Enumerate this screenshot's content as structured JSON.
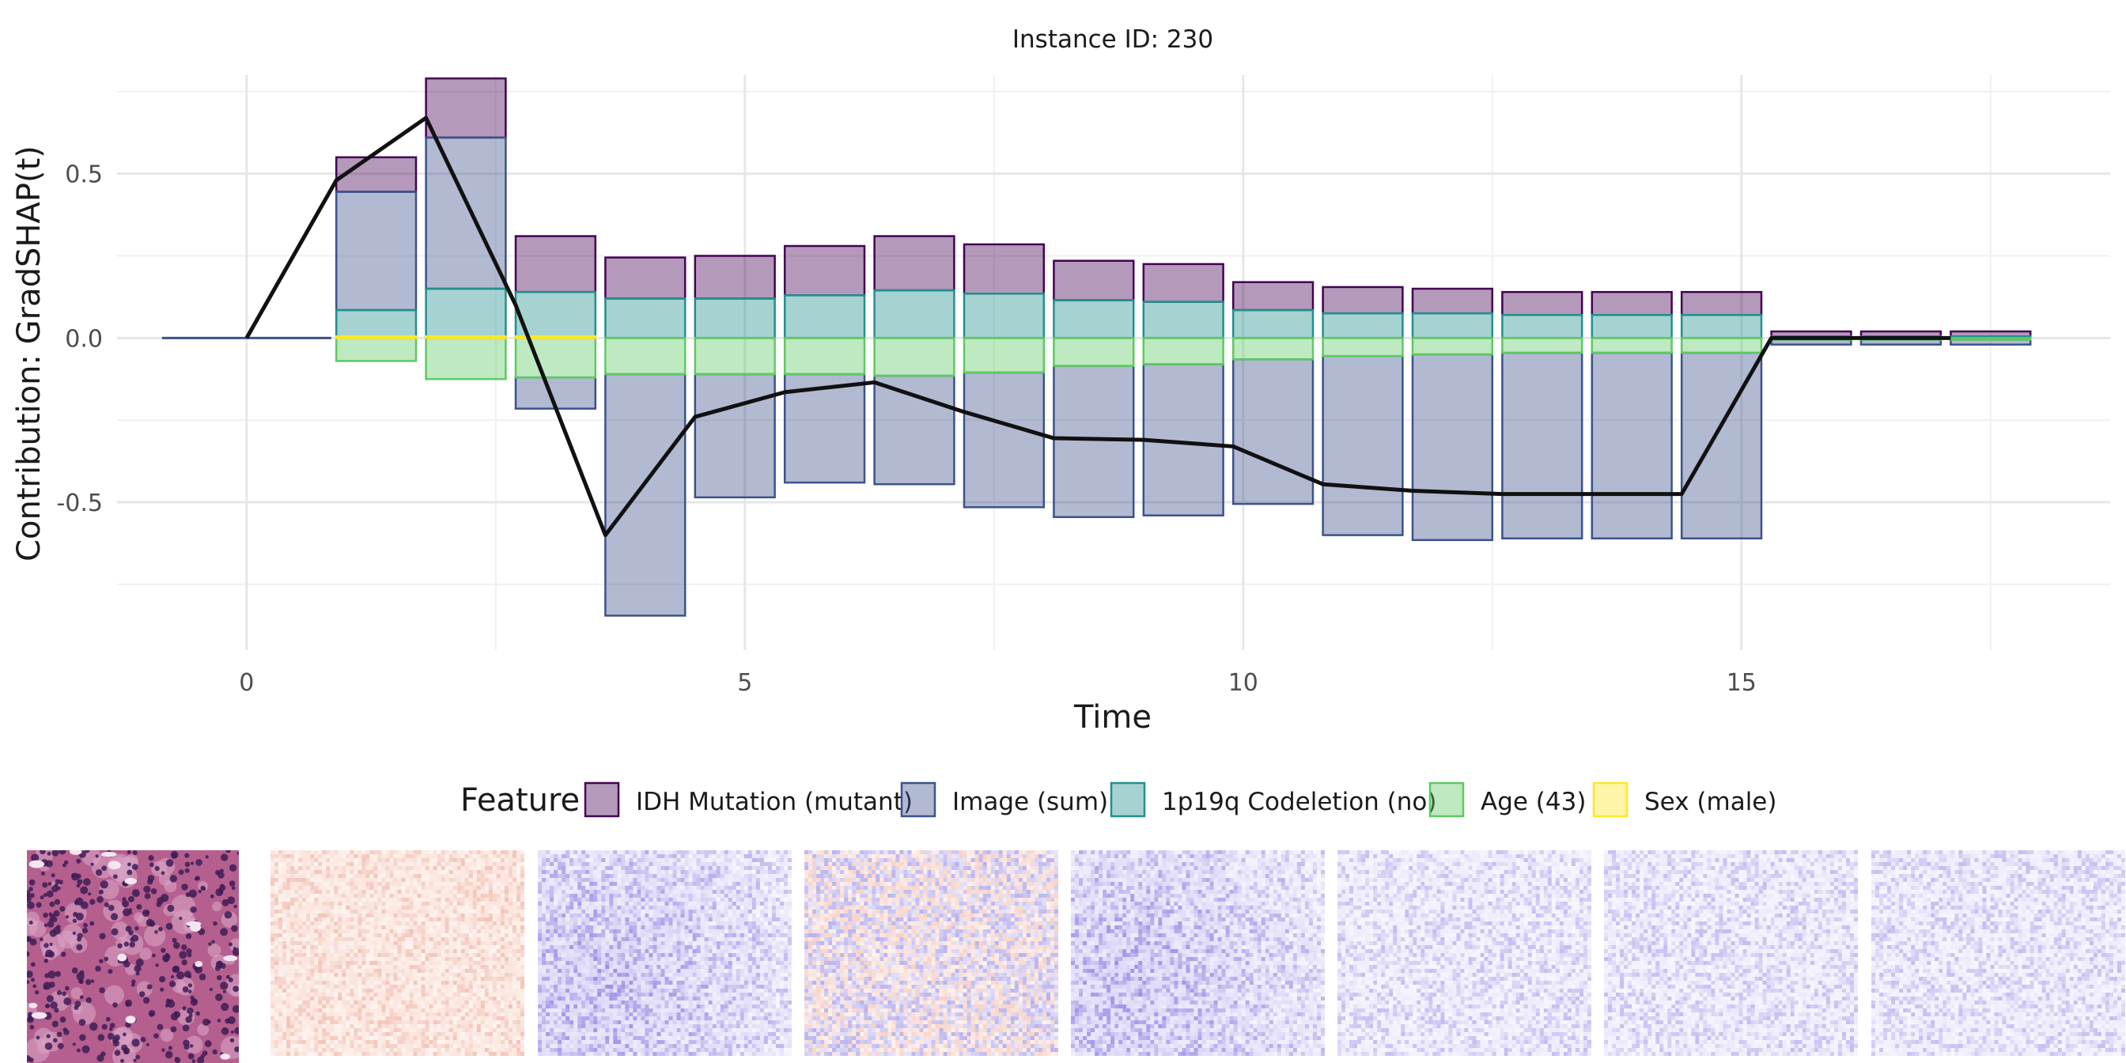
{
  "chart_data": {
    "type": "bar",
    "subtype": "stacked bar with line overlay",
    "title": "Instance ID: 230",
    "xlabel": "Time",
    "ylabel": "Contribution: GradSHAP(t)",
    "xlim": [
      -1.3,
      18.7
    ],
    "ylim": [
      -0.95,
      0.8
    ],
    "x_ticks": [
      0,
      5,
      10,
      15
    ],
    "y_ticks": [
      -0.5,
      0.0,
      0.5
    ],
    "x_tick_labels": [
      "0",
      "5",
      "10",
      "15"
    ],
    "y_tick_labels": [
      "-0.5",
      "0.0",
      "0.5"
    ],
    "grid": true,
    "legend": {
      "title": "Feature",
      "position": "bottom",
      "entries": [
        "IDH Mutation (mutant)",
        "Image (sum)",
        "1p19q Codeletion (no)",
        "Age (43)",
        "Sex (male)"
      ]
    },
    "x": [
      0.0,
      1.3,
      2.2,
      3.1,
      4.0,
      4.9,
      5.8,
      6.7,
      7.6,
      8.5,
      9.4,
      10.3,
      11.2,
      12.1,
      13.0,
      13.9,
      14.8,
      15.7,
      16.6,
      17.5
    ],
    "series": [
      {
        "name": "IDH Mutation (mutant)",
        "color": "#440154",
        "values": [
          0.0,
          0.105,
          0.18,
          0.17,
          0.125,
          0.13,
          0.145,
          0.165,
          0.15,
          0.12,
          0.115,
          0.085,
          0.075,
          0.075,
          0.07,
          0.07,
          0.07,
          0.01,
          0.01,
          0.01
        ]
      },
      {
        "name": "Image (sum)",
        "pos": [
          0.0,
          0.365,
          0.465,
          0.0,
          0.0,
          0.0,
          0.0,
          0.0,
          0.0,
          0.0,
          0.0,
          0.0,
          0.0,
          0.0,
          0.0,
          0.0,
          0.0,
          0.0,
          0.0,
          0.0
        ],
        "color": "#3b528b",
        "values": [
          0.0,
          0.365,
          0.465,
          -0.095,
          -0.74,
          -0.375,
          -0.335,
          -0.33,
          -0.41,
          -0.46,
          -0.465,
          -0.44,
          -0.55,
          -0.565,
          -0.565,
          -0.565,
          -0.565,
          -0.01,
          -0.01,
          -0.01
        ],
        "neg_start": [
          0.0,
          0.0,
          0.0,
          -0.125,
          -0.11,
          -0.11,
          -0.11,
          -0.115,
          -0.105,
          -0.085,
          -0.08,
          -0.065,
          -0.055,
          -0.05,
          -0.045,
          -0.045,
          -0.045,
          -0.005,
          -0.005,
          -0.005
        ]
      },
      {
        "name": "1p19q Codeletion (no)",
        "color": "#21908c",
        "values": [
          0.0,
          0.08,
          0.15,
          0.14,
          0.12,
          0.12,
          0.13,
          0.145,
          0.135,
          0.115,
          0.11,
          0.085,
          0.075,
          0.075,
          0.07,
          0.07,
          0.07,
          0.005,
          0.005,
          0.005
        ]
      },
      {
        "name": "Age (43)",
        "color": "#5ec962",
        "values": [
          0.0,
          -0.07,
          -0.125,
          -0.125,
          -0.11,
          -0.11,
          -0.11,
          -0.115,
          -0.105,
          -0.085,
          -0.08,
          -0.065,
          -0.055,
          -0.05,
          -0.045,
          -0.045,
          -0.045,
          -0.005,
          -0.005,
          -0.005
        ]
      },
      {
        "name": "Sex (male)",
        "color": "#fde725",
        "values": [
          0.0,
          0.005,
          0.005,
          0.005,
          0.0,
          0.0,
          0.0,
          0.0,
          0.0,
          0.0,
          0.0,
          0.0,
          0.0,
          0.0,
          0.0,
          0.0,
          0.0,
          0.0,
          0.0,
          0.0
        ]
      }
    ],
    "stack_segments": [
      {
        "x": 0.0,
        "segs": []
      },
      {
        "x": 1.3,
        "segs": [
          [
            0.445,
            0.55,
            "IDH Mutation (mutant)"
          ],
          [
            0.085,
            0.445,
            "Image (sum)"
          ],
          [
            0.005,
            0.085,
            "1p19q Codeletion (no)"
          ],
          [
            -0.07,
            0.0,
            "Age (43)"
          ],
          [
            0.0,
            0.005,
            "Sex (male)"
          ]
        ]
      },
      {
        "x": 2.2,
        "segs": [
          [
            0.61,
            0.79,
            "IDH Mutation (mutant)"
          ],
          [
            0.15,
            0.61,
            "Image (sum)"
          ],
          [
            0.005,
            0.15,
            "1p19q Codeletion (no)"
          ],
          [
            -0.125,
            0.0,
            "Age (43)"
          ],
          [
            0.0,
            0.005,
            "Sex (male)"
          ]
        ]
      },
      {
        "x": 3.1,
        "segs": [
          [
            0.14,
            0.31,
            "IDH Mutation (mutant)"
          ],
          [
            -0.215,
            -0.12,
            "Image (sum)"
          ],
          [
            0.005,
            0.14,
            "1p19q Codeletion (no)"
          ],
          [
            -0.12,
            0.0,
            "Age (43)"
          ],
          [
            0.0,
            0.005,
            "Sex (male)"
          ]
        ]
      },
      {
        "x": 4.0,
        "segs": [
          [
            0.12,
            0.245,
            "IDH Mutation (mutant)"
          ],
          [
            -0.845,
            -0.11,
            "Image (sum)"
          ],
          [
            0.0,
            0.12,
            "1p19q Codeletion (no)"
          ],
          [
            -0.11,
            0.0,
            "Age (43)"
          ]
        ]
      },
      {
        "x": 4.9,
        "segs": [
          [
            0.12,
            0.25,
            "IDH Mutation (mutant)"
          ],
          [
            -0.485,
            -0.11,
            "Image (sum)"
          ],
          [
            0.0,
            0.12,
            "1p19q Codeletion (no)"
          ],
          [
            -0.11,
            0.0,
            "Age (43)"
          ]
        ]
      },
      {
        "x": 5.8,
        "segs": [
          [
            0.13,
            0.28,
            "IDH Mutation (mutant)"
          ],
          [
            -0.44,
            -0.11,
            "Image (sum)"
          ],
          [
            0.0,
            0.13,
            "1p19q Codeletion (no)"
          ],
          [
            -0.11,
            0.0,
            "Age (43)"
          ]
        ]
      },
      {
        "x": 6.7,
        "segs": [
          [
            0.145,
            0.31,
            "IDH Mutation (mutant)"
          ],
          [
            -0.445,
            -0.115,
            "Image (sum)"
          ],
          [
            0.0,
            0.145,
            "1p19q Codeletion (no)"
          ],
          [
            -0.115,
            0.0,
            "Age (43)"
          ]
        ]
      },
      {
        "x": 7.6,
        "segs": [
          [
            0.135,
            0.285,
            "IDH Mutation (mutant)"
          ],
          [
            -0.515,
            -0.105,
            "Image (sum)"
          ],
          [
            0.0,
            0.135,
            "1p19q Codeletion (no)"
          ],
          [
            -0.105,
            0.0,
            "Age (43)"
          ]
        ]
      },
      {
        "x": 8.5,
        "segs": [
          [
            0.115,
            0.235,
            "IDH Mutation (mutant)"
          ],
          [
            -0.545,
            -0.085,
            "Image (sum)"
          ],
          [
            0.0,
            0.115,
            "1p19q Codeletion (no)"
          ],
          [
            -0.085,
            0.0,
            "Age (43)"
          ]
        ]
      },
      {
        "x": 9.4,
        "segs": [
          [
            0.11,
            0.225,
            "IDH Mutation (mutant)"
          ],
          [
            -0.54,
            -0.08,
            "Image (sum)"
          ],
          [
            0.0,
            0.11,
            "1p19q Codeletion (no)"
          ],
          [
            -0.08,
            0.0,
            "Age (43)"
          ]
        ]
      },
      {
        "x": 10.3,
        "segs": [
          [
            0.085,
            0.17,
            "IDH Mutation (mutant)"
          ],
          [
            -0.505,
            -0.065,
            "Image (sum)"
          ],
          [
            0.0,
            0.085,
            "1p19q Codeletion (no)"
          ],
          [
            -0.065,
            0.0,
            "Age (43)"
          ]
        ]
      },
      {
        "x": 11.2,
        "segs": [
          [
            0.075,
            0.155,
            "IDH Mutation (mutant)"
          ],
          [
            -0.6,
            -0.055,
            "Image (sum)"
          ],
          [
            0.0,
            0.075,
            "1p19q Codeletion (no)"
          ],
          [
            -0.055,
            0.0,
            "Age (43)"
          ]
        ]
      },
      {
        "x": 12.1,
        "segs": [
          [
            0.075,
            0.15,
            "IDH Mutation (mutant)"
          ],
          [
            -0.615,
            -0.05,
            "Image (sum)"
          ],
          [
            0.0,
            0.075,
            "1p19q Codeletion (no)"
          ],
          [
            -0.05,
            0.0,
            "Age (43)"
          ]
        ]
      },
      {
        "x": 13.0,
        "segs": [
          [
            0.07,
            0.14,
            "IDH Mutation (mutant)"
          ],
          [
            -0.61,
            -0.045,
            "Image (sum)"
          ],
          [
            0.0,
            0.07,
            "1p19q Codeletion (no)"
          ],
          [
            -0.045,
            0.0,
            "Age (43)"
          ]
        ]
      },
      {
        "x": 13.9,
        "segs": [
          [
            0.07,
            0.14,
            "IDH Mutation (mutant)"
          ],
          [
            -0.61,
            -0.045,
            "Image (sum)"
          ],
          [
            0.0,
            0.07,
            "1p19q Codeletion (no)"
          ],
          [
            -0.045,
            0.0,
            "Age (43)"
          ]
        ]
      },
      {
        "x": 14.8,
        "segs": [
          [
            0.07,
            0.14,
            "IDH Mutation (mutant)"
          ],
          [
            -0.61,
            -0.045,
            "Image (sum)"
          ],
          [
            0.0,
            0.07,
            "1p19q Codeletion (no)"
          ],
          [
            -0.045,
            0.0,
            "Age (43)"
          ]
        ]
      },
      {
        "x": 15.7,
        "segs": [
          [
            0.005,
            0.02,
            "IDH Mutation (mutant)"
          ],
          [
            -0.02,
            -0.005,
            "Image (sum)"
          ],
          [
            0.0,
            0.005,
            "1p19q Codeletion (no)"
          ],
          [
            -0.005,
            0.0,
            "Age (43)"
          ]
        ]
      },
      {
        "x": 16.6,
        "segs": [
          [
            0.005,
            0.02,
            "IDH Mutation (mutant)"
          ],
          [
            -0.02,
            -0.005,
            "Image (sum)"
          ],
          [
            0.0,
            0.005,
            "1p19q Codeletion (no)"
          ],
          [
            -0.005,
            0.0,
            "Age (43)"
          ]
        ]
      },
      {
        "x": 17.5,
        "segs": [
          [
            0.005,
            0.02,
            "IDH Mutation (mutant)"
          ],
          [
            -0.02,
            -0.005,
            "Image (sum)"
          ],
          [
            0.0,
            0.005,
            "1p19q Codeletion (no)"
          ],
          [
            -0.005,
            0.0,
            "Age (43)"
          ]
        ]
      }
    ],
    "total_line": {
      "color": "#111111",
      "x": [
        0.0,
        0.9,
        1.8,
        2.7,
        3.6,
        4.5,
        5.4,
        6.3,
        7.2,
        8.1,
        9.0,
        9.9,
        10.8,
        11.7,
        12.6,
        13.5,
        14.4,
        15.3,
        16.2,
        17.1
      ],
      "y": [
        0.0,
        0.48,
        0.67,
        0.1,
        -0.6,
        -0.24,
        -0.165,
        -0.135,
        -0.225,
        -0.305,
        -0.31,
        -0.33,
        -0.445,
        -0.465,
        -0.475,
        -0.475,
        -0.475,
        0.0,
        0.0,
        0.0
      ]
    }
  },
  "image_strip": {
    "thumbnail": "histology-patch",
    "heatmaps": [
      {
        "tone": "red"
      },
      {
        "tone": "blue"
      },
      {
        "tone": "mixed"
      },
      {
        "tone": "blue"
      },
      {
        "tone": "blue-light"
      },
      {
        "tone": "blue-light"
      },
      {
        "tone": "blue-light"
      }
    ]
  }
}
